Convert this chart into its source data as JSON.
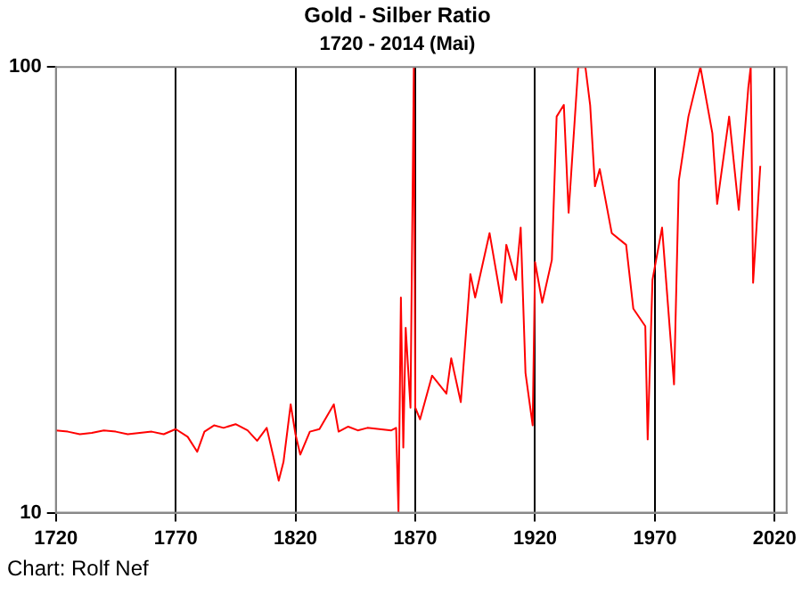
{
  "chart_data": {
    "type": "line",
    "title": "Gold - Silber Ratio",
    "subtitle": "1720 - 2014 (Mai)",
    "annotations": [
      "Chart: Rolf Nef"
    ],
    "x": [
      1720,
      1725,
      1730,
      1735,
      1740,
      1745,
      1750,
      1755,
      1760,
      1765,
      1770,
      1775,
      1779,
      1782,
      1786,
      1790,
      1795,
      1800,
      1804,
      1808,
      1811,
      1813,
      1815,
      1818,
      1820,
      1822,
      1826,
      1830,
      1836,
      1838,
      1842,
      1846,
      1850,
      1855,
      1860,
      1862,
      1863,
      1864,
      1865,
      1866,
      1868,
      1869.4,
      1870,
      1872,
      1877,
      1883,
      1885,
      1889,
      1893,
      1895,
      1901,
      1906,
      1908,
      1912,
      1914,
      1916,
      1919,
      1920,
      1923,
      1927,
      1929,
      1932,
      1934,
      1938,
      1941,
      1943,
      1945,
      1947,
      1952,
      1958,
      1961,
      1966,
      1967,
      1969,
      1973,
      1978,
      1980,
      1984,
      1989,
      1994,
      1996,
      2001,
      2005,
      2009,
      2010,
      2011,
      2014
    ],
    "series": [
      {
        "color": "#ff0000",
        "values": [
          15.3,
          15.2,
          15,
          15.1,
          15.3,
          15.2,
          15,
          15.1,
          15.2,
          15,
          15.4,
          14.8,
          13.7,
          15.2,
          15.7,
          15.5,
          15.8,
          15.3,
          14.5,
          15.5,
          13.2,
          11.8,
          13,
          17.5,
          15,
          13.5,
          15.2,
          15.4,
          17.5,
          15.2,
          15.6,
          15.3,
          15.5,
          15.4,
          15.3,
          15.5,
          10,
          30.4,
          14,
          26,
          17.2,
          100,
          17.2,
          16.2,
          20.3,
          18.5,
          22.2,
          17.7,
          34.3,
          30.4,
          42.4,
          29.6,
          39.9,
          33.3,
          43.6,
          20.6,
          15.7,
          36.5,
          29.6,
          36.9,
          77.4,
          82.2,
          47.1,
          100,
          100,
          82,
          54,
          59,
          42.4,
          39.9,
          28.7,
          26.2,
          14.6,
          33.3,
          43.6,
          19.4,
          55.6,
          77.4,
          100,
          71,
          49.3,
          77.4,
          47.8,
          90,
          100,
          32.8,
          60
        ]
      }
    ],
    "xlim": [
      1720,
      2025
    ],
    "xticks": [
      1720,
      1770,
      1820,
      1870,
      1920,
      1970,
      2020
    ],
    "ylim": [
      10,
      100
    ],
    "yticks": [
      10,
      100
    ],
    "log": "y",
    "grid": "x",
    "legend": false
  }
}
